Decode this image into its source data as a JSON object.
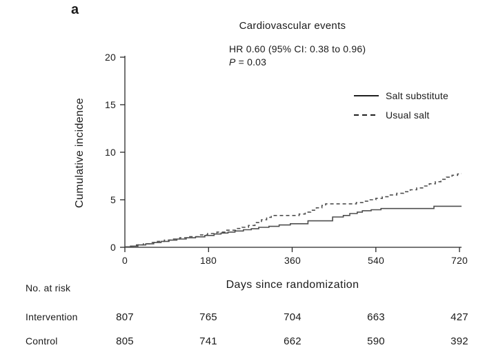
{
  "panel_label": "a",
  "colors": {
    "curve": "#4d4d4d",
    "axis": "#262626",
    "legend_line": "#1f1f1f",
    "text": "#1a1a1a"
  },
  "chart_data": {
    "type": "line",
    "subtype": "step-cumulative-incidence",
    "title": "Cardiovascular events",
    "annotation": {
      "hr_text": "HR 0.60 (95% CI: 0.38 to 0.96)",
      "p_label": "P",
      "p_rest": " = 0.03"
    },
    "xlabel": "Days since randomization",
    "ylabel": "Cumulative incidence",
    "xlim": [
      0,
      720
    ],
    "ylim": [
      0,
      20
    ],
    "x_ticks": [
      0,
      180,
      360,
      540,
      720
    ],
    "y_ticks": [
      0,
      5,
      10,
      15,
      20
    ],
    "grid": false,
    "legend_position": "upper right",
    "legend": [
      {
        "name": "Salt substitute",
        "style": "solid"
      },
      {
        "name": "Usual salt",
        "style": "dashed"
      }
    ],
    "series": [
      {
        "name": "Salt substitute",
        "style": "solid",
        "points": [
          [
            0,
            0.05
          ],
          [
            12,
            0.12
          ],
          [
            28,
            0.25
          ],
          [
            45,
            0.37
          ],
          [
            62,
            0.5
          ],
          [
            78,
            0.62
          ],
          [
            95,
            0.75
          ],
          [
            112,
            0.87
          ],
          [
            132,
            1.0
          ],
          [
            152,
            1.1
          ],
          [
            172,
            1.25
          ],
          [
            192,
            1.4
          ],
          [
            207,
            1.5
          ],
          [
            222,
            1.6
          ],
          [
            237,
            1.72
          ],
          [
            255,
            1.85
          ],
          [
            272,
            1.95
          ],
          [
            288,
            2.1
          ],
          [
            310,
            2.2
          ],
          [
            332,
            2.35
          ],
          [
            356,
            2.48
          ],
          [
            394,
            2.78
          ],
          [
            447,
            3.19
          ],
          [
            470,
            3.35
          ],
          [
            484,
            3.55
          ],
          [
            500,
            3.7
          ],
          [
            511,
            3.85
          ],
          [
            530,
            3.95
          ],
          [
            551,
            4.08
          ],
          [
            665,
            4.32
          ],
          [
            720,
            4.32
          ]
        ]
      },
      {
        "name": "Usual salt",
        "style": "dashed",
        "points": [
          [
            0,
            0.05
          ],
          [
            14,
            0.12
          ],
          [
            25,
            0.25
          ],
          [
            40,
            0.37
          ],
          [
            55,
            0.5
          ],
          [
            70,
            0.62
          ],
          [
            85,
            0.75
          ],
          [
            100,
            0.87
          ],
          [
            118,
            1.0
          ],
          [
            138,
            1.12
          ],
          [
            158,
            1.3
          ],
          [
            178,
            1.45
          ],
          [
            198,
            1.6
          ],
          [
            218,
            1.8
          ],
          [
            238,
            1.98
          ],
          [
            252,
            2.1
          ],
          [
            266,
            2.3
          ],
          [
            280,
            2.6
          ],
          [
            294,
            2.9
          ],
          [
            305,
            3.15
          ],
          [
            315,
            3.35
          ],
          [
            375,
            3.5
          ],
          [
            388,
            3.7
          ],
          [
            400,
            3.9
          ],
          [
            412,
            4.15
          ],
          [
            424,
            4.4
          ],
          [
            432,
            4.57
          ],
          [
            498,
            4.7
          ],
          [
            512,
            4.85
          ],
          [
            526,
            5.0
          ],
          [
            540,
            5.15
          ],
          [
            554,
            5.32
          ],
          [
            568,
            5.5
          ],
          [
            585,
            5.68
          ],
          [
            600,
            5.85
          ],
          [
            614,
            6.05
          ],
          [
            628,
            6.25
          ],
          [
            642,
            6.45
          ],
          [
            655,
            6.68
          ],
          [
            668,
            6.9
          ],
          [
            680,
            7.15
          ],
          [
            692,
            7.38
          ],
          [
            704,
            7.58
          ],
          [
            716,
            7.72
          ],
          [
            720,
            7.75
          ]
        ]
      }
    ]
  },
  "risk_table": {
    "label": "No. at risk",
    "columns_days": [
      0,
      180,
      360,
      540,
      720
    ],
    "rows": [
      {
        "label": "Intervention",
        "values": [
          "807",
          "765",
          "704",
          "663",
          "427"
        ]
      },
      {
        "label": "Control",
        "values": [
          "805",
          "741",
          "662",
          "590",
          "392"
        ]
      }
    ]
  }
}
